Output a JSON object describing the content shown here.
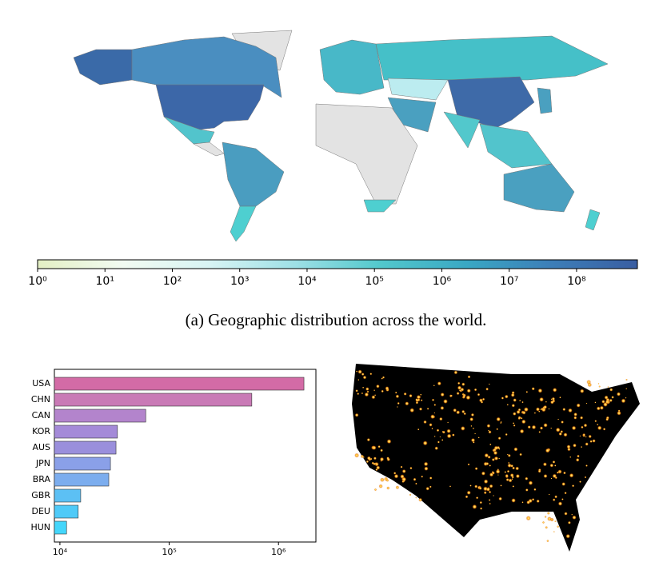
{
  "caption": "(a)  Geographic distribution across the world.",
  "chart_data": [
    {
      "type": "colorbar",
      "scale": "log",
      "xlim": [
        1,
        800000000
      ],
      "xticks": [
        {
          "value": 1,
          "label": "10⁰"
        },
        {
          "value": 10,
          "label": "10¹"
        },
        {
          "value": 100,
          "label": "10²"
        },
        {
          "value": 1000,
          "label": "10³"
        },
        {
          "value": 10000,
          "label": "10⁴"
        },
        {
          "value": 100000,
          "label": "10⁵"
        },
        {
          "value": 1000000,
          "label": "10⁶"
        },
        {
          "value": 10000000,
          "label": "10⁷"
        },
        {
          "value": 100000000,
          "label": "10⁸"
        }
      ],
      "colors": [
        "#e3efc4",
        "#f2fbf2",
        "#d8f4f4",
        "#9ee0e6",
        "#52c8cc",
        "#3aa8c4",
        "#3c7eb8",
        "#3a5ea2"
      ]
    },
    {
      "type": "barh",
      "scale": "log",
      "categories": [
        "USA",
        "CHN",
        "CAN",
        "KOR",
        "AUS",
        "JPN",
        "BRA",
        "GBR",
        "DEU",
        "HUN"
      ],
      "values": [
        1710000,
        570000,
        61000,
        33600,
        32600,
        29000,
        28000,
        15500,
        14700,
        11500
      ],
      "colors": [
        "#d36ba6",
        "#c97ab6",
        "#b384cc",
        "#a48ad8",
        "#9a8fdc",
        "#8aa0e8",
        "#7cadee",
        "#5cc0f4",
        "#4fcaf8",
        "#44d6fb"
      ],
      "xlim": [
        8900,
        2200000
      ],
      "xticks": [
        {
          "value": 10000,
          "label": "10⁴"
        },
        {
          "value": 100000,
          "label": "10⁵"
        },
        {
          "value": 1000000,
          "label": "10⁶"
        }
      ]
    }
  ]
}
